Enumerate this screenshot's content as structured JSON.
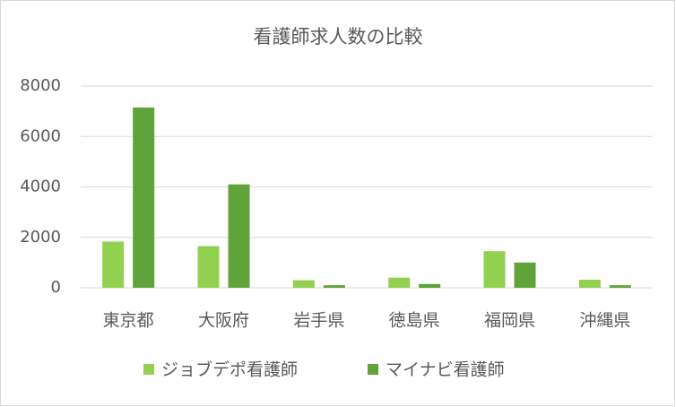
{
  "chart_data": {
    "type": "bar",
    "title": "看護師求人数の比較",
    "categories": [
      "東京都",
      "大阪府",
      "岩手県",
      "徳島県",
      "福岡県",
      "沖縄県"
    ],
    "series": [
      {
        "name": "ジョブデポ看護師",
        "color": "#92d050",
        "values": [
          1830,
          1650,
          300,
          400,
          1450,
          320
        ]
      },
      {
        "name": "マイナビ看護師",
        "color": "#5fa33a",
        "values": [
          7150,
          4100,
          100,
          150,
          1000,
          100
        ]
      }
    ],
    "ylim": [
      0,
      8000
    ],
    "yticks": [
      0,
      2000,
      4000,
      6000,
      8000
    ],
    "grid": true,
    "legend": "bottom"
  }
}
